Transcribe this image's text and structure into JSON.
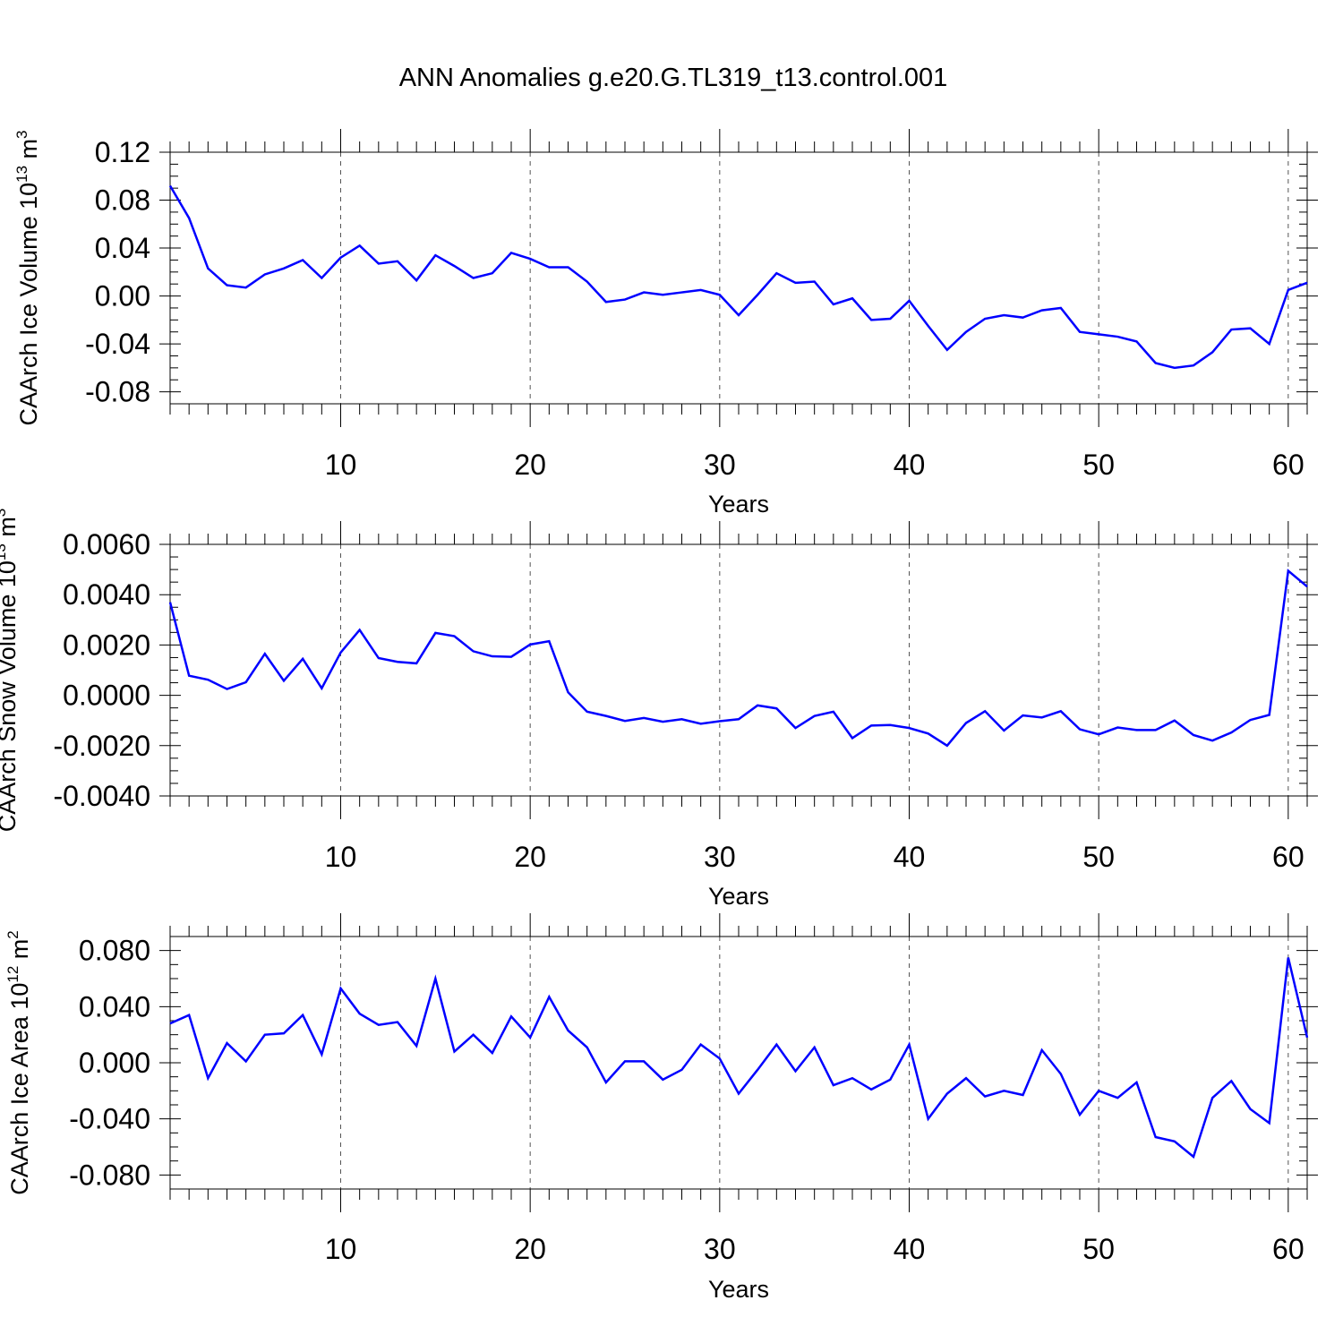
{
  "title": "ANN Anomalies g.e20.G.TL319_t13.control.001",
  "colors": {
    "series": "#0000ff",
    "axis": "#000000",
    "grid": "#555555"
  },
  "chart_data": [
    {
      "type": "line",
      "title": "ANN Anomalies g.e20.G.TL319_t13.control.001",
      "xlabel": "Years",
      "ylabel": "CAArch Ice Volume 10",
      "ylabel_sup": "13",
      "ylabel_unit": " m",
      "ylabel_unit_sup": "3",
      "xlim": [
        1,
        61
      ],
      "ylim": [
        -0.09,
        0.12
      ],
      "xticks": [
        10,
        20,
        30,
        40,
        50,
        60
      ],
      "xtick_labels": [
        "10",
        "20",
        "30",
        "40",
        "50",
        "60"
      ],
      "yticks": [
        -0.08,
        -0.04,
        0.0,
        0.04,
        0.08,
        0.12
      ],
      "ytick_labels": [
        "-0.08",
        "-0.04",
        "0.00",
        "0.04",
        "0.08",
        "0.12"
      ],
      "x_grid_vertical_dashed": true,
      "x": [
        1,
        2,
        3,
        4,
        5,
        6,
        7,
        8,
        9,
        10,
        11,
        12,
        13,
        14,
        15,
        16,
        17,
        18,
        19,
        20,
        21,
        22,
        23,
        24,
        25,
        26,
        27,
        28,
        29,
        30,
        31,
        32,
        33,
        34,
        35,
        36,
        37,
        38,
        39,
        40,
        41,
        42,
        43,
        44,
        45,
        46,
        47,
        48,
        49,
        50,
        51,
        52,
        53,
        54,
        55,
        56,
        57,
        58,
        59,
        60,
        61
      ],
      "series": [
        {
          "name": "CAArch Ice Volume",
          "values": [
            0.092,
            0.065,
            0.023,
            0.009,
            0.007,
            0.018,
            0.023,
            0.03,
            0.015,
            0.032,
            0.042,
            0.027,
            0.029,
            0.013,
            0.034,
            0.025,
            0.015,
            0.019,
            0.036,
            0.031,
            0.024,
            0.024,
            0.012,
            -0.005,
            -0.003,
            0.003,
            0.001,
            0.003,
            0.005,
            0.001,
            -0.016,
            0.001,
            0.019,
            0.011,
            0.012,
            -0.007,
            -0.002,
            -0.02,
            -0.019,
            -0.004,
            -0.025,
            -0.045,
            -0.03,
            -0.019,
            -0.016,
            -0.018,
            -0.012,
            -0.01,
            -0.03,
            -0.032,
            -0.034,
            -0.038,
            -0.056,
            -0.06,
            -0.058,
            -0.047,
            -0.028,
            -0.027,
            -0.04,
            0.005,
            0.011
          ]
        }
      ]
    },
    {
      "type": "line",
      "xlabel": "Years",
      "ylabel": "CAArch Snow Volume 10",
      "ylabel_sup": "13",
      "ylabel_unit": " m",
      "ylabel_unit_sup": "3",
      "xlim": [
        1,
        61
      ],
      "ylim": [
        -0.004,
        0.006
      ],
      "xticks": [
        10,
        20,
        30,
        40,
        50,
        60
      ],
      "xtick_labels": [
        "10",
        "20",
        "30",
        "40",
        "50",
        "60"
      ],
      "yticks": [
        -0.004,
        -0.002,
        0.0,
        0.002,
        0.004,
        0.006
      ],
      "ytick_labels": [
        "-0.0040",
        "-0.0020",
        "0.0000",
        "0.0020",
        "0.0040",
        "0.0060"
      ],
      "x_grid_vertical_dashed": true,
      "x": [
        1,
        2,
        3,
        4,
        5,
        6,
        7,
        8,
        9,
        10,
        11,
        12,
        13,
        14,
        15,
        16,
        17,
        18,
        19,
        20,
        21,
        22,
        23,
        24,
        25,
        26,
        27,
        28,
        29,
        30,
        31,
        32,
        33,
        34,
        35,
        36,
        37,
        38,
        39,
        40,
        41,
        42,
        43,
        44,
        45,
        46,
        47,
        48,
        49,
        50,
        51,
        52,
        53,
        54,
        55,
        56,
        57,
        58,
        59,
        60,
        61
      ],
      "series": [
        {
          "name": "CAArch Snow Volume",
          "values": [
            0.0037,
            0.00078,
            0.00062,
            0.00025,
            0.00052,
            0.00165,
            0.00058,
            0.00145,
            0.00028,
            0.0017,
            0.0026,
            0.00148,
            0.00133,
            0.00127,
            0.00248,
            0.00235,
            0.00175,
            0.00155,
            0.00153,
            0.00202,
            0.00215,
            0.00012,
            -0.00065,
            -0.00082,
            -0.00102,
            -0.0009,
            -0.00105,
            -0.00095,
            -0.00113,
            -0.00103,
            -0.00095,
            -0.0004,
            -0.00052,
            -0.0013,
            -0.00082,
            -0.00065,
            -0.0017,
            -0.0012,
            -0.00118,
            -0.0013,
            -0.00152,
            -0.002,
            -0.0011,
            -0.00063,
            -0.0014,
            -0.0008,
            -0.00088,
            -0.00063,
            -0.00135,
            -0.00155,
            -0.00128,
            -0.00138,
            -0.00138,
            -0.001,
            -0.00158,
            -0.0018,
            -0.00148,
            -0.00098,
            -0.00078,
            0.00495,
            0.00432
          ]
        }
      ]
    },
    {
      "type": "line",
      "xlabel": "Years",
      "ylabel": "CAArch Ice Area 10",
      "ylabel_sup": "12",
      "ylabel_unit": " m",
      "ylabel_unit_sup": "2",
      "xlim": [
        1,
        61
      ],
      "ylim": [
        -0.09,
        0.09
      ],
      "xticks": [
        10,
        20,
        30,
        40,
        50,
        60
      ],
      "xtick_labels": [
        "10",
        "20",
        "30",
        "40",
        "50",
        "60"
      ],
      "yticks": [
        -0.08,
        -0.04,
        0.0,
        0.04,
        0.08
      ],
      "ytick_labels": [
        "-0.080",
        "-0.040",
        "0.000",
        "0.040",
        "0.080"
      ],
      "x_grid_vertical_dashed": true,
      "x": [
        1,
        2,
        3,
        4,
        5,
        6,
        7,
        8,
        9,
        10,
        11,
        12,
        13,
        14,
        15,
        16,
        17,
        18,
        19,
        20,
        21,
        22,
        23,
        24,
        25,
        26,
        27,
        28,
        29,
        30,
        31,
        32,
        33,
        34,
        35,
        36,
        37,
        38,
        39,
        40,
        41,
        42,
        43,
        44,
        45,
        46,
        47,
        48,
        49,
        50,
        51,
        52,
        53,
        54,
        55,
        56,
        57,
        58,
        59,
        60,
        61
      ],
      "series": [
        {
          "name": "CAArch Ice Area",
          "values": [
            0.028,
            0.034,
            -0.011,
            0.014,
            0.001,
            0.02,
            0.021,
            0.034,
            0.006,
            0.053,
            0.035,
            0.027,
            0.029,
            0.012,
            0.06,
            0.008,
            0.02,
            0.007,
            0.033,
            0.018,
            0.047,
            0.023,
            0.011,
            -0.014,
            0.001,
            0.001,
            -0.012,
            -0.005,
            0.013,
            0.003,
            -0.022,
            -0.005,
            0.013,
            -0.006,
            0.011,
            -0.016,
            -0.011,
            -0.019,
            -0.012,
            0.013,
            -0.04,
            -0.022,
            -0.011,
            -0.024,
            -0.02,
            -0.023,
            0.009,
            -0.008,
            -0.037,
            -0.02,
            -0.025,
            -0.014,
            -0.053,
            -0.056,
            -0.067,
            -0.025,
            -0.013,
            -0.033,
            -0.043,
            0.075,
            0.018
          ]
        }
      ]
    }
  ]
}
